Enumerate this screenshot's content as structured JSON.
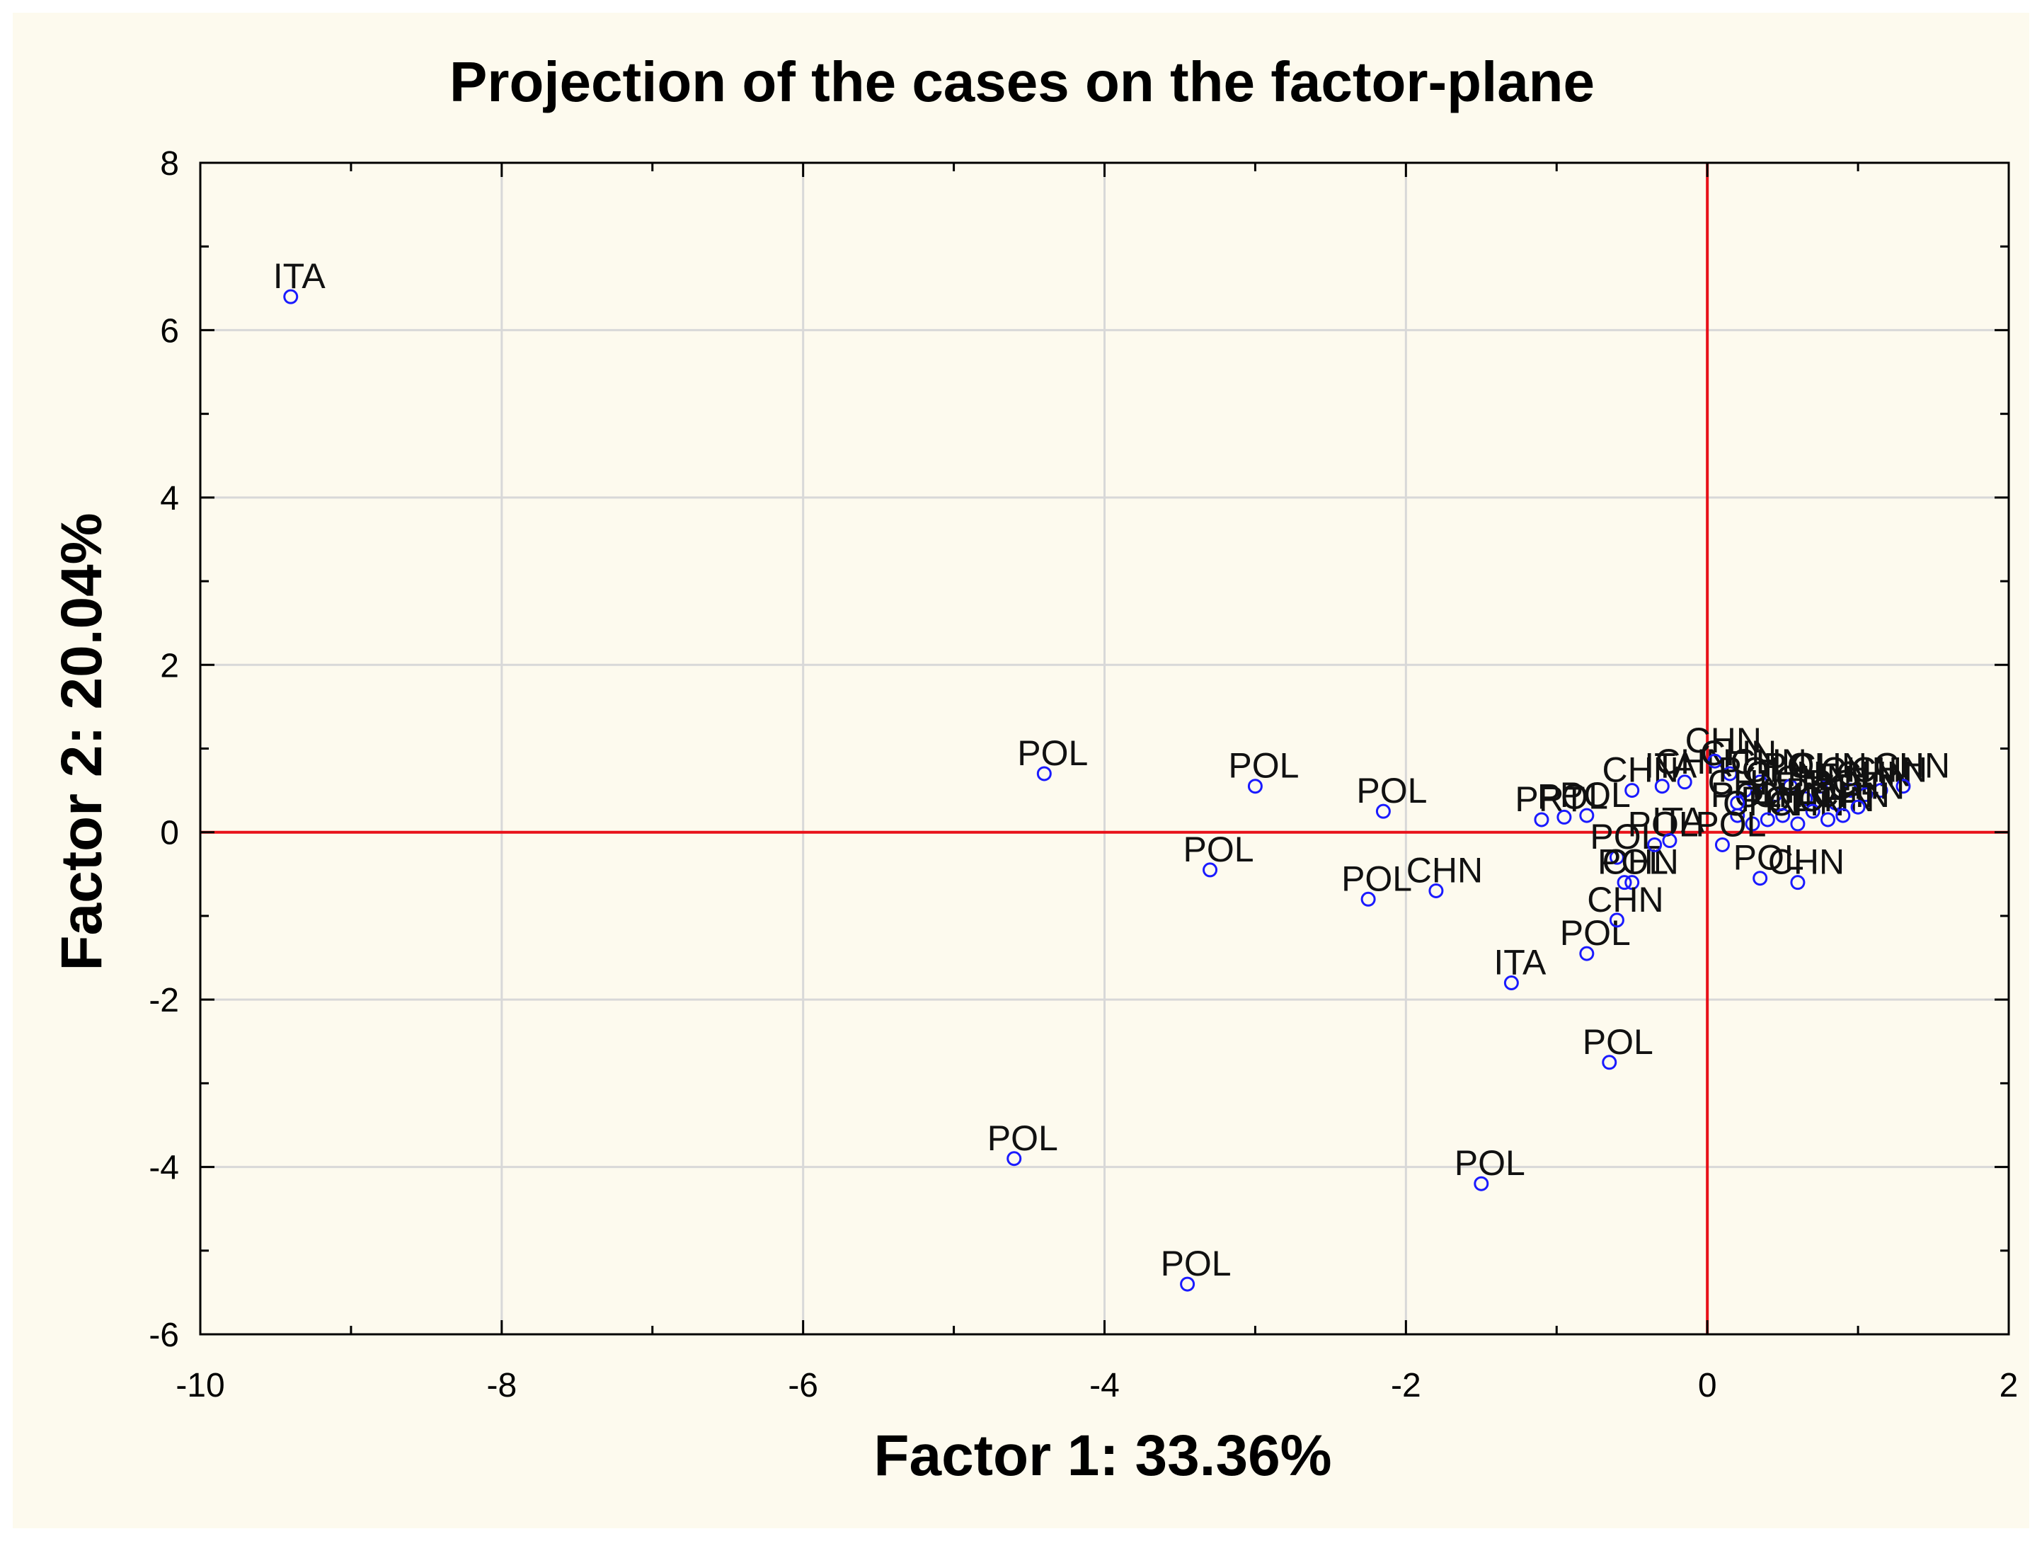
{
  "chart_data": {
    "type": "scatter",
    "title": "Projection of the cases on the factor-plane",
    "xlabel": "Factor 1: 33.36%",
    "ylabel": "Factor 2: 20.04%",
    "xlim": [
      -10,
      2
    ],
    "ylim": [
      -6,
      8
    ],
    "xticks": [
      -10,
      -8,
      -6,
      -4,
      -2,
      0,
      2
    ],
    "yticks": [
      8,
      6,
      4,
      2,
      0,
      -2,
      -4,
      -6
    ],
    "grid": true,
    "reference_lines": {
      "x": 0,
      "y": 0,
      "color": "#e8111a"
    },
    "marker_color": "#1a1aff",
    "points": [
      {
        "label": "ITA",
        "x": -9.4,
        "y": 6.4
      },
      {
        "label": "POL",
        "x": -4.4,
        "y": 0.7
      },
      {
        "label": "POL",
        "x": -3.0,
        "y": 0.55
      },
      {
        "label": "POL",
        "x": -2.15,
        "y": 0.25
      },
      {
        "label": "POL",
        "x": -3.3,
        "y": -0.45
      },
      {
        "label": "POL",
        "x": -2.25,
        "y": -0.8
      },
      {
        "label": "CHN",
        "x": -1.8,
        "y": -0.7
      },
      {
        "label": "ITA",
        "x": -1.3,
        "y": -1.8
      },
      {
        "label": "POL",
        "x": -0.8,
        "y": -1.45
      },
      {
        "label": "POL",
        "x": -0.65,
        "y": -2.75
      },
      {
        "label": "POL",
        "x": -4.6,
        "y": -3.9
      },
      {
        "label": "POL",
        "x": -1.5,
        "y": -4.2
      },
      {
        "label": "POL",
        "x": -3.45,
        "y": -5.4
      },
      {
        "label": "PRT",
        "x": -1.1,
        "y": 0.15
      },
      {
        "label": "POL",
        "x": -0.95,
        "y": 0.18
      },
      {
        "label": "POL",
        "x": -0.8,
        "y": 0.2
      },
      {
        "label": "CHN",
        "x": -0.5,
        "y": 0.5
      },
      {
        "label": "ITA",
        "x": -0.3,
        "y": 0.55
      },
      {
        "label": "CHN",
        "x": -0.15,
        "y": 0.6
      },
      {
        "label": "POL",
        "x": -0.6,
        "y": -0.3
      },
      {
        "label": "POL",
        "x": -0.55,
        "y": -0.6
      },
      {
        "label": "CHN",
        "x": -0.5,
        "y": -0.6
      },
      {
        "label": "CHN",
        "x": -0.6,
        "y": -1.05
      },
      {
        "label": "POL",
        "x": -0.35,
        "y": -0.15
      },
      {
        "label": "ITA",
        "x": -0.25,
        "y": -0.1
      },
      {
        "label": "CHN",
        "x": 0.05,
        "y": 0.85
      },
      {
        "label": "CHN",
        "x": 0.15,
        "y": 0.7
      },
      {
        "label": "POL",
        "x": 0.25,
        "y": 0.5
      },
      {
        "label": "CHN",
        "x": 0.35,
        "y": 0.6
      },
      {
        "label": "CHN",
        "x": 0.45,
        "y": 0.45
      },
      {
        "label": "POL",
        "x": 0.55,
        "y": 0.55
      },
      {
        "label": "CHN",
        "x": 0.65,
        "y": 0.4
      },
      {
        "label": "CHN",
        "x": 0.75,
        "y": 0.55
      },
      {
        "label": "POL",
        "x": 0.85,
        "y": 0.35
      },
      {
        "label": "CHN",
        "x": 0.95,
        "y": 0.5
      },
      {
        "label": "CHN",
        "x": 1.05,
        "y": 0.45
      },
      {
        "label": "CHN",
        "x": 1.15,
        "y": 0.5
      },
      {
        "label": "CHN",
        "x": 1.3,
        "y": 0.55
      },
      {
        "label": "POL",
        "x": 0.2,
        "y": 0.2
      },
      {
        "label": "CHN",
        "x": 0.3,
        "y": 0.1
      },
      {
        "label": "POL",
        "x": 0.4,
        "y": 0.15
      },
      {
        "label": "CHN",
        "x": 0.5,
        "y": 0.2
      },
      {
        "label": "CHN",
        "x": 0.6,
        "y": 0.1
      },
      {
        "label": "POL",
        "x": 0.7,
        "y": 0.25
      },
      {
        "label": "CHN",
        "x": 0.8,
        "y": 0.15
      },
      {
        "label": "CHN",
        "x": 0.9,
        "y": 0.2
      },
      {
        "label": "CHN",
        "x": 1.0,
        "y": 0.3
      },
      {
        "label": "POL",
        "x": 0.35,
        "y": -0.55
      },
      {
        "label": "CHN",
        "x": 0.6,
        "y": -0.6
      },
      {
        "label": "POL",
        "x": 0.1,
        "y": -0.15
      },
      {
        "label": "CHN",
        "x": 0.2,
        "y": 0.35
      }
    ]
  }
}
